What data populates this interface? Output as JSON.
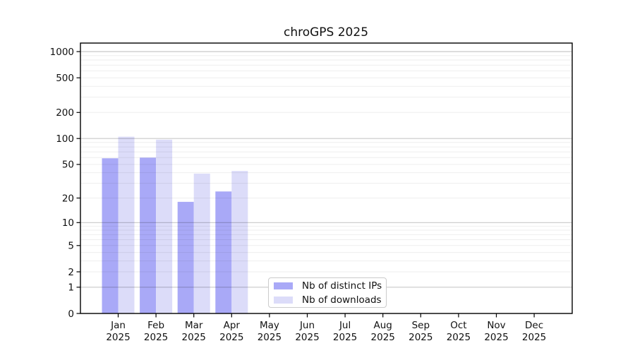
{
  "title": "chroGPS 2025",
  "chart_data": {
    "type": "bar",
    "title": "chroGPS 2025",
    "categories": [
      "Jan",
      "Feb",
      "Mar",
      "Apr",
      "May",
      "Jun",
      "Jul",
      "Aug",
      "Sep",
      "Oct",
      "Nov",
      "Dec"
    ],
    "x_year_label": "2025",
    "series": [
      {
        "name": "Nb of distinct IPs",
        "color": "#a9a9f7",
        "values": [
          59,
          60,
          18,
          24,
          null,
          null,
          null,
          null,
          null,
          null,
          null,
          null
        ]
      },
      {
        "name": "Nb of downloads",
        "color": "#dcdcf9",
        "values": [
          105,
          97,
          39,
          42,
          null,
          null,
          null,
          null,
          null,
          null,
          null,
          null
        ]
      }
    ],
    "y_axis": {
      "scale": "log1p",
      "ylim": [
        0,
        1252
      ],
      "ticks": [
        0,
        1,
        2,
        5,
        10,
        20,
        50,
        100,
        200,
        500,
        1000
      ]
    },
    "grid": {
      "major": [
        1,
        10,
        100,
        1000
      ],
      "minor": [
        2,
        3,
        4,
        5,
        6,
        7,
        8,
        9,
        20,
        30,
        40,
        50,
        60,
        70,
        80,
        90,
        200,
        300,
        400,
        500,
        600,
        700,
        800,
        900
      ],
      "major_color": "rgba(0,0,0,0.21)",
      "minor_color": "rgba(0,0,0,0.065)"
    },
    "legend": {
      "entries": [
        "Nb of distinct IPs",
        "Nb of downloads"
      ],
      "position": "bottom-center"
    }
  }
}
